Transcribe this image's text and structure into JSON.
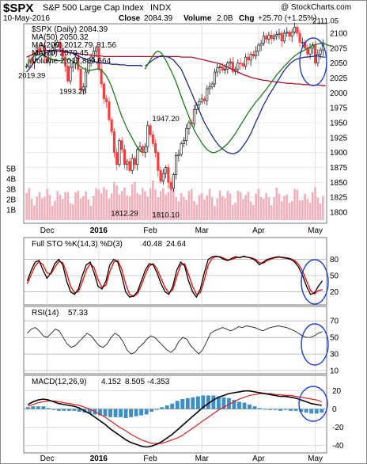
{
  "header": {
    "symbol": "$SPX",
    "name": "S&P 500 Large Cap Index",
    "exchange": "INDX",
    "date": "10-May-2016",
    "close_label": "Close",
    "close": "2084.39",
    "volume_label": "Volume",
    "volume": "2.0B",
    "chg_label": "Chg",
    "chg": "+25.70 (+1.25%)",
    "watermark": "@ StockCharts.com"
  },
  "price_panel": {
    "legend": [
      {
        "label": "$SPX (Daily) 2084.39",
        "color": "#000000"
      },
      {
        "label": "MA(50) 2050.32",
        "color": "#1c2a8c"
      },
      {
        "label": "MA(200) 2012.79",
        "color": "#b0102a"
      },
      {
        "label": "MA(20) 2079.45",
        "color": "#1f7a1f"
      },
      {
        "label": "Volume 2,017,809,664",
        "color": "#e08a9a"
      }
    ],
    "ma200_extra": "81.56",
    "annotations": [
      {
        "label": "2019.39",
        "x": 2,
        "y": 2019.39
      },
      {
        "label": "1993.26",
        "x": 18,
        "y": 1993.26
      },
      {
        "label": "1947.20",
        "x": 54,
        "y": 1947.2
      },
      {
        "label": "2111.05",
        "x": 116,
        "y": 2111.05
      },
      {
        "label": "1812.29",
        "x": 38,
        "y": 1812.29
      },
      {
        "label": "1810.10",
        "x": 54,
        "y": 1810.1
      }
    ],
    "vol_ticks": [
      "5B",
      "4B",
      "3B",
      "2B",
      "1B"
    ]
  },
  "sto_panel": {
    "label": "Full STO %K(14,3) %D(3)",
    "k": "40.48",
    "d": "24.64"
  },
  "rsi_panel": {
    "label": "RSI(14)",
    "value": "57.33"
  },
  "macd_panel": {
    "label": "MACD(12,26,9)",
    "macd": "4.152",
    "signal": "8.505",
    "hist": "-4.353"
  },
  "colors": {
    "up": "#1a1a1a",
    "down": "#ff3a3a",
    "ma50": "#1c2a8c",
    "ma200": "#b0102a",
    "ma20": "#1f7a1f",
    "volume": "#f0b0bc",
    "sto_k": "#000000",
    "sto_d": "#ff0000",
    "hist": "#3d8fc6",
    "circle": "#1f3fd0"
  },
  "chart_data": {
    "type": "line",
    "x_labels": [
      "Dec",
      "2016",
      "Feb",
      "Mar",
      "Apr",
      "May"
    ],
    "x_label_index": [
      8,
      28,
      48,
      68,
      90,
      112
    ],
    "price": {
      "ylim": [
        1800,
        2100
      ],
      "ticks": [
        2100,
        2075,
        2050,
        2025,
        2000,
        1975,
        1950,
        1925,
        1900,
        1875,
        1850,
        1825,
        1800
      ],
      "close": [
        2045,
        2055,
        2050,
        2065,
        2075,
        2070,
        2080,
        2060,
        2052,
        2070,
        2075,
        2080,
        2085,
        2075,
        2060,
        2045,
        2020,
        2043,
        2050,
        2060,
        2040,
        2005,
        2010,
        2035,
        2050,
        2060,
        2070,
        2075,
        2040,
        2015,
        1990,
        1985,
        1955,
        1935,
        1900,
        1880,
        1920,
        1905,
        1880,
        1885,
        1870,
        1890,
        1880,
        1905,
        1910,
        1900,
        1910,
        1945,
        1930,
        1915,
        1900,
        1870,
        1852,
        1865,
        1875,
        1850,
        1840,
        1863,
        1895,
        1897,
        1915,
        1920,
        1940,
        1950,
        1948,
        1972,
        1980,
        1985,
        1990,
        1987,
        2007,
        2010,
        2015,
        2035,
        2042,
        2044,
        2038,
        2040,
        2050,
        2052,
        2036,
        2040,
        2050,
        2049,
        2045,
        2060,
        2055,
        2065,
        2062,
        2070,
        2080,
        2083,
        2095,
        2090,
        2097,
        2091,
        2095,
        2098,
        2100,
        2087,
        2100,
        2102,
        2095,
        2102,
        2110,
        2100,
        2085,
        2085,
        2075,
        2065,
        2075,
        2081,
        2050,
        2065,
        2072,
        2084
      ],
      "ma50": [
        2045,
        2048,
        2052,
        2055,
        2058,
        2060,
        2062,
        2062,
        2061,
        2060,
        2058,
        2055,
        2050,
        2045,
        2040,
        2030,
        2020,
        2010,
        2000,
        1990,
        1980,
        1970,
        1960,
        1950,
        1943,
        1935,
        1928,
        1921,
        1915,
        1910,
        1906,
        1903,
        1900,
        1899,
        1898,
        1899,
        1901,
        1905,
        1911,
        1917,
        1924,
        1932,
        1942,
        1952,
        1961,
        1971,
        1980,
        1988,
        1996,
        2003,
        2010,
        2017,
        2024,
        2031,
        2038,
        2043,
        2048,
        2052,
        2055,
        2057,
        2058,
        2059,
        2060,
        2060,
        2061,
        2061,
        2062,
        2062,
        2061,
        2060,
        2060
      ],
      "ma50_start": 46,
      "ma200": [
        2060,
        2059,
        2058,
        2057,
        2056,
        2055,
        2054,
        2053,
        2052,
        2051,
        2050,
        2049,
        2047,
        2045,
        2043,
        2041,
        2039,
        2037,
        2035,
        2033,
        2031,
        2029,
        2028,
        2026,
        2025,
        2024,
        2023,
        2022,
        2021,
        2021,
        2020,
        2019,
        2019,
        2018,
        2018,
        2017,
        2017,
        2016,
        2016,
        2016,
        2015,
        2015,
        2015,
        2014,
        2014,
        2014,
        2013,
        2013,
        2013,
        2013,
        2013,
        2012,
        2012
      ],
      "ma200_start": 64,
      "ma20": [
        2040,
        2048,
        2055,
        2062,
        2068,
        2070,
        2068,
        2062,
        2055,
        2046,
        2038,
        2028,
        2018,
        2006,
        1994,
        1982,
        1971,
        1960,
        1948,
        1938,
        1930,
        1923,
        1916,
        1910,
        1905,
        1902,
        1900,
        1900,
        1902,
        1904,
        1907,
        1911,
        1915,
        1920,
        1926,
        1932,
        1939,
        1946,
        1953,
        1960,
        1967,
        1973,
        1979,
        1985,
        1990,
        1995,
        2001,
        2006,
        2012,
        2018,
        2024,
        2030,
        2035,
        2040,
        2045,
        2049,
        2054,
        2058,
        2062,
        2065,
        2068,
        2070,
        2072,
        2075,
        2077,
        2079,
        2081,
        2082,
        2083,
        2083,
        2082,
        2080,
        2079
      ],
      "ma20_start": 46
    },
    "volume": {
      "ylim": [
        0,
        6
      ],
      "ticks": [
        5,
        4,
        3,
        2,
        1
      ]
    },
    "stochastic": {
      "ylim": [
        0,
        100
      ],
      "ticks": [
        80,
        50,
        20
      ],
      "k": [
        40,
        60,
        75,
        78,
        60,
        45,
        55,
        72,
        80,
        70,
        40,
        20,
        15,
        25,
        50,
        70,
        75,
        55,
        30,
        25,
        40,
        70,
        80,
        75,
        50,
        20,
        10,
        12,
        20,
        40,
        60,
        72,
        70,
        55,
        35,
        20,
        15,
        30,
        60,
        75,
        68,
        40,
        20,
        10,
        25,
        55,
        80,
        85,
        86,
        84,
        80,
        78,
        82,
        85,
        83,
        86,
        84,
        82,
        78,
        70,
        75,
        80,
        82,
        84,
        85,
        83,
        82,
        80,
        75,
        65,
        50,
        30,
        15,
        18,
        30,
        40
      ],
      "d": [
        35,
        52,
        68,
        76,
        70,
        55,
        53,
        65,
        76,
        74,
        55,
        30,
        18,
        20,
        38,
        60,
        72,
        65,
        42,
        28,
        32,
        58,
        75,
        78,
        62,
        35,
        15,
        11,
        16,
        32,
        52,
        68,
        72,
        62,
        45,
        28,
        18,
        24,
        48,
        70,
        72,
        52,
        30,
        15,
        18,
        42,
        70,
        82,
        85,
        85,
        82,
        79,
        80,
        83,
        84,
        85,
        84,
        83,
        80,
        74,
        73,
        78,
        81,
        83,
        84,
        84,
        83,
        81,
        78,
        70,
        58,
        40,
        22,
        16,
        22,
        24
      ]
    },
    "rsi": {
      "ylim": [
        10,
        75
      ],
      "ticks": [
        70,
        50,
        30,
        10
      ],
      "values": [
        55,
        60,
        62,
        58,
        52,
        50,
        55,
        60,
        58,
        50,
        42,
        38,
        40,
        45,
        50,
        55,
        52,
        46,
        40,
        38,
        42,
        50,
        55,
        52,
        45,
        35,
        30,
        32,
        38,
        42,
        48,
        52,
        50,
        45,
        40,
        35,
        32,
        36,
        45,
        50,
        48,
        40,
        35,
        30,
        35,
        45,
        55,
        58,
        60,
        62,
        60,
        58,
        60,
        63,
        62,
        64,
        63,
        62,
        60,
        58,
        60,
        62,
        63,
        64,
        63,
        62,
        60,
        58,
        55,
        52,
        50,
        50,
        52,
        55,
        57
      ]
    },
    "macd": {
      "ylim": [
        -45,
        25
      ],
      "ticks": [
        20,
        0,
        -20,
        -40
      ],
      "macd": [
        5,
        8,
        10,
        11,
        10,
        8,
        6,
        5,
        4,
        3,
        1,
        -2,
        -5,
        -9,
        -13,
        -17,
        -22,
        -26,
        -30,
        -34,
        -37,
        -39,
        -41,
        -42,
        -41,
        -39,
        -36,
        -32,
        -28,
        -23,
        -18,
        -13,
        -8,
        -3,
        2,
        6,
        10,
        13,
        15,
        17,
        18,
        19,
        20,
        20,
        19,
        18,
        17,
        16,
        15,
        14,
        14,
        13,
        12,
        10,
        8,
        6,
        5,
        4
      ],
      "signal": [
        3,
        5,
        7,
        8,
        9,
        9,
        8,
        7,
        6,
        5,
        4,
        2,
        0,
        -3,
        -6,
        -9,
        -13,
        -17,
        -21,
        -24,
        -28,
        -31,
        -34,
        -36,
        -38,
        -38,
        -38,
        -36,
        -34,
        -32,
        -29,
        -25,
        -21,
        -17,
        -13,
        -9,
        -5,
        -1,
        2,
        5,
        8,
        11,
        13,
        15,
        16,
        17,
        17,
        17,
        16,
        16,
        15,
        15,
        14,
        13,
        12,
        11,
        10,
        8
      ]
    }
  }
}
